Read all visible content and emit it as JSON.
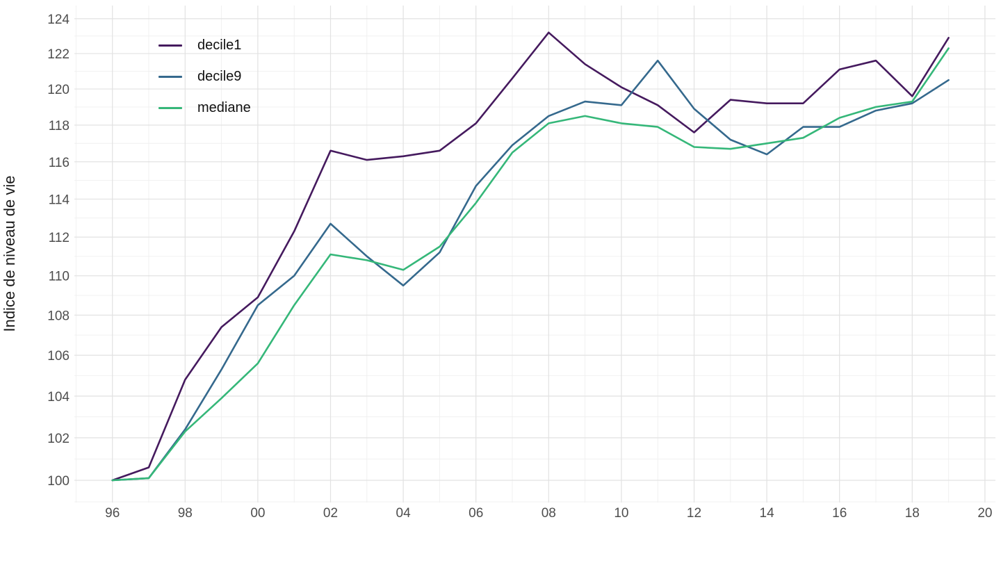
{
  "chart_data": {
    "type": "line",
    "title": "",
    "xlabel": "",
    "ylabel": "Indice de niveau de vie",
    "y_scale": "log",
    "x_years": [
      1996,
      1997,
      1998,
      1999,
      2000,
      2001,
      2002,
      2003,
      2004,
      2005,
      2006,
      2007,
      2008,
      2009,
      2010,
      2011,
      2012,
      2013,
      2014,
      2015,
      2016,
      2017,
      2018,
      2019
    ],
    "x_major_ticks": [
      {
        "year": 1996,
        "label": "96"
      },
      {
        "year": 1998,
        "label": "98"
      },
      {
        "year": 2000,
        "label": "00"
      },
      {
        "year": 2002,
        "label": "02"
      },
      {
        "year": 2004,
        "label": "04"
      },
      {
        "year": 2006,
        "label": "06"
      },
      {
        "year": 2008,
        "label": "08"
      },
      {
        "year": 2010,
        "label": "10"
      },
      {
        "year": 2012,
        "label": "12"
      },
      {
        "year": 2014,
        "label": "14"
      },
      {
        "year": 2016,
        "label": "16"
      },
      {
        "year": 2018,
        "label": "18"
      },
      {
        "year": 2020,
        "label": "20"
      }
    ],
    "x_minor_ticks": [
      1995,
      1997,
      1999,
      2001,
      2003,
      2005,
      2007,
      2009,
      2011,
      2013,
      2015,
      2017,
      2019
    ],
    "y_major_ticks": [
      100,
      102,
      104,
      106,
      108,
      110,
      112,
      114,
      116,
      118,
      120,
      122,
      124
    ],
    "y_minor_ticks": [
      99,
      101,
      103,
      105,
      107,
      109,
      111,
      113,
      115,
      117,
      119,
      121,
      123
    ],
    "ylim": [
      98.9,
      124.7
    ],
    "grid": "on",
    "legend_position": "top-left-inside",
    "series": [
      {
        "name": "decile1",
        "color": "#451a5e",
        "values": [
          100.0,
          100.6,
          104.8,
          107.4,
          108.9,
          112.3,
          116.6,
          116.1,
          116.3,
          116.6,
          118.1,
          120.6,
          123.2,
          121.4,
          120.1,
          119.1,
          117.6,
          119.4,
          119.2,
          119.2,
          121.1,
          121.6,
          119.6,
          122.9
        ]
      },
      {
        "name": "decile9",
        "color": "#35698d",
        "values": [
          100.0,
          100.1,
          102.4,
          105.3,
          108.5,
          110.0,
          112.7,
          111.0,
          109.5,
          111.2,
          114.7,
          116.9,
          118.5,
          119.3,
          119.1,
          121.6,
          118.9,
          117.2,
          116.4,
          117.9,
          117.9,
          118.8,
          119.2,
          120.5
        ]
      },
      {
        "name": "mediane",
        "color": "#35b779",
        "values": [
          100.0,
          100.1,
          102.3,
          103.9,
          105.6,
          108.5,
          111.1,
          110.8,
          110.3,
          111.5,
          113.8,
          116.5,
          118.1,
          118.5,
          118.1,
          117.9,
          116.8,
          116.7,
          117.0,
          117.3,
          118.4,
          119.0,
          119.3,
          122.3
        ]
      }
    ],
    "colors": {
      "grid_major": "#e2e2e2",
      "grid_minor": "#efefef",
      "tick_label": "#4d4d4d",
      "axis_title": "#1a1a1a",
      "background": "#ffffff"
    }
  }
}
